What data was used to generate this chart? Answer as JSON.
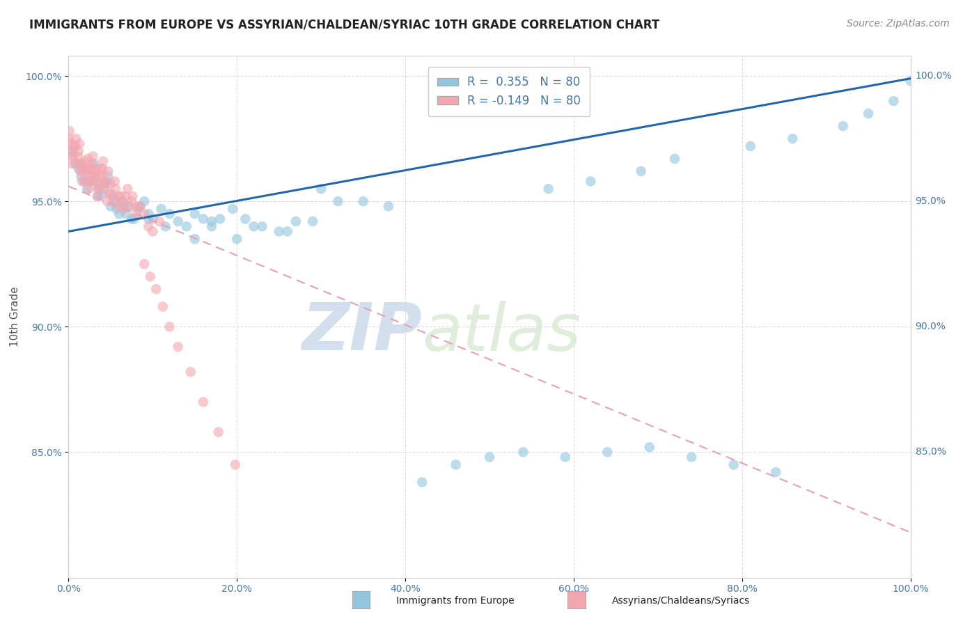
{
  "title": "IMMIGRANTS FROM EUROPE VS ASSYRIAN/CHALDEAN/SYRIAC 10TH GRADE CORRELATION CHART",
  "source": "Source: ZipAtlas.com",
  "ylabel": "10th Grade",
  "x_range": [
    0.0,
    1.0
  ],
  "y_range": [
    0.8,
    1.008
  ],
  "R_blue": 0.355,
  "R_pink": -0.149,
  "N": 80,
  "legend_blue_label": "Immigrants from Europe",
  "legend_pink_label": "Assyrians/Chaldeans/Syriacs",
  "blue_color": "#92c5de",
  "pink_color": "#f4a6b0",
  "blue_line_color": "#2166ac",
  "pink_line_color": "#e8a0b0",
  "title_fontsize": 12,
  "source_fontsize": 10,
  "scatter_alpha": 0.6,
  "scatter_size": 110,
  "blue_x": [
    0.005,
    0.008,
    0.012,
    0.015,
    0.018,
    0.02,
    0.022,
    0.025,
    0.028,
    0.03,
    0.033,
    0.036,
    0.04,
    0.043,
    0.047,
    0.05,
    0.053,
    0.057,
    0.06,
    0.063,
    0.068,
    0.072,
    0.078,
    0.083,
    0.09,
    0.095,
    0.1,
    0.11,
    0.12,
    0.13,
    0.14,
    0.15,
    0.16,
    0.17,
    0.18,
    0.195,
    0.21,
    0.23,
    0.25,
    0.27,
    0.3,
    0.32,
    0.35,
    0.38,
    0.15,
    0.17,
    0.2,
    0.22,
    0.26,
    0.29,
    0.015,
    0.025,
    0.035,
    0.045,
    0.055,
    0.065,
    0.075,
    0.085,
    0.095,
    0.115,
    0.57,
    0.62,
    0.68,
    0.72,
    0.81,
    0.86,
    0.92,
    0.95,
    0.98,
    1.0,
    0.42,
    0.46,
    0.5,
    0.54,
    0.59,
    0.64,
    0.69,
    0.74,
    0.79,
    0.84
  ],
  "blue_y": [
    0.97,
    0.965,
    0.963,
    0.96,
    0.958,
    0.963,
    0.955,
    0.958,
    0.96,
    0.965,
    0.958,
    0.955,
    0.953,
    0.957,
    0.96,
    0.948,
    0.952,
    0.947,
    0.945,
    0.95,
    0.945,
    0.948,
    0.943,
    0.947,
    0.95,
    0.945,
    0.943,
    0.947,
    0.945,
    0.942,
    0.94,
    0.945,
    0.943,
    0.94,
    0.943,
    0.947,
    0.943,
    0.94,
    0.938,
    0.942,
    0.955,
    0.95,
    0.95,
    0.948,
    0.935,
    0.942,
    0.935,
    0.94,
    0.938,
    0.942,
    0.965,
    0.958,
    0.952,
    0.957,
    0.95,
    0.948,
    0.943,
    0.948,
    0.943,
    0.94,
    0.955,
    0.958,
    0.962,
    0.967,
    0.972,
    0.975,
    0.98,
    0.985,
    0.99,
    0.998,
    0.838,
    0.845,
    0.848,
    0.85,
    0.848,
    0.85,
    0.852,
    0.848,
    0.845,
    0.842
  ],
  "pink_x": [
    0.0,
    0.002,
    0.004,
    0.006,
    0.008,
    0.01,
    0.012,
    0.014,
    0.016,
    0.018,
    0.02,
    0.022,
    0.024,
    0.026,
    0.028,
    0.03,
    0.032,
    0.034,
    0.036,
    0.038,
    0.04,
    0.042,
    0.044,
    0.046,
    0.048,
    0.05,
    0.053,
    0.056,
    0.059,
    0.062,
    0.065,
    0.068,
    0.072,
    0.076,
    0.08,
    0.085,
    0.09,
    0.095,
    0.1,
    0.108,
    0.001,
    0.003,
    0.005,
    0.007,
    0.009,
    0.011,
    0.013,
    0.015,
    0.017,
    0.019,
    0.021,
    0.023,
    0.025,
    0.027,
    0.029,
    0.031,
    0.033,
    0.035,
    0.037,
    0.039,
    0.041,
    0.043,
    0.047,
    0.051,
    0.055,
    0.06,
    0.065,
    0.07,
    0.075,
    0.082,
    0.09,
    0.097,
    0.104,
    0.112,
    0.12,
    0.13,
    0.145,
    0.16,
    0.178,
    0.198
  ],
  "pink_y": [
    0.975,
    0.97,
    0.965,
    0.968,
    0.972,
    0.965,
    0.97,
    0.962,
    0.958,
    0.963,
    0.958,
    0.963,
    0.955,
    0.96,
    0.965,
    0.958,
    0.96,
    0.952,
    0.956,
    0.96,
    0.963,
    0.955,
    0.958,
    0.95,
    0.953,
    0.957,
    0.95,
    0.955,
    0.948,
    0.952,
    0.947,
    0.952,
    0.948,
    0.952,
    0.945,
    0.948,
    0.945,
    0.94,
    0.938,
    0.942,
    0.978,
    0.973,
    0.968,
    0.972,
    0.975,
    0.968,
    0.973,
    0.965,
    0.962,
    0.966,
    0.962,
    0.967,
    0.958,
    0.963,
    0.968,
    0.962,
    0.963,
    0.955,
    0.96,
    0.963,
    0.966,
    0.958,
    0.962,
    0.953,
    0.958,
    0.952,
    0.95,
    0.955,
    0.95,
    0.948,
    0.925,
    0.92,
    0.915,
    0.908,
    0.9,
    0.892,
    0.882,
    0.87,
    0.858,
    0.845
  ],
  "blue_line_start_x": 0.0,
  "blue_line_end_x": 1.0,
  "blue_line_start_y": 0.938,
  "blue_line_end_y": 0.999,
  "pink_line_start_x": 0.0,
  "pink_line_end_x": 1.0,
  "pink_line_start_y": 0.956,
  "pink_line_end_y": 0.818,
  "y_ticks": [
    0.85,
    0.9,
    0.95,
    1.0
  ],
  "y_tick_extra": 0.85,
  "grid_color": "#dddddd",
  "watermark_zip": "ZIP",
  "watermark_atlas": "atlas"
}
